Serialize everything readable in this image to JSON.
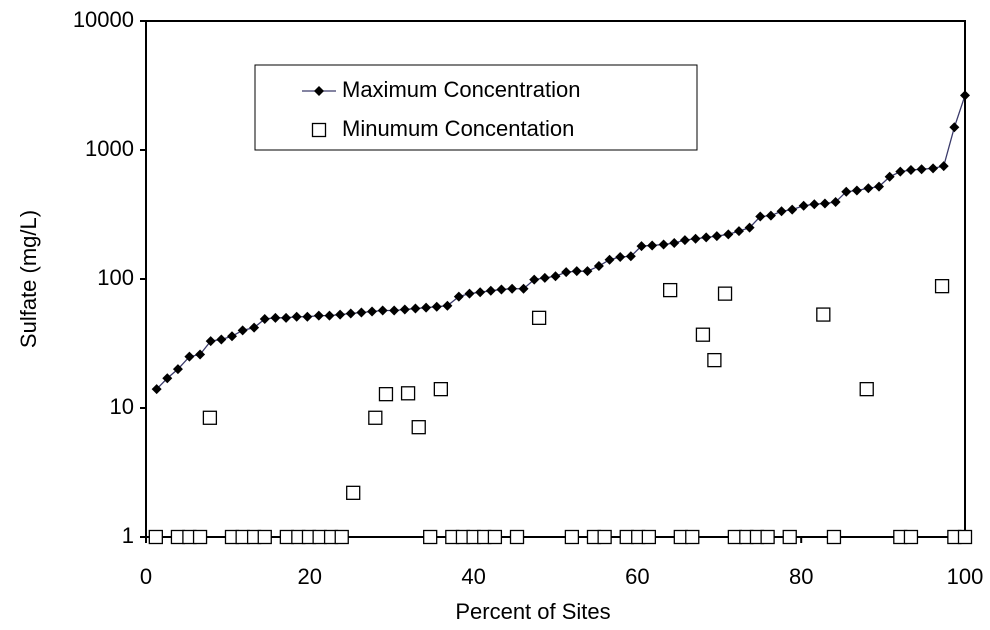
{
  "chart_data": {
    "type": "scatter",
    "x_label": "Percent of Sites",
    "y_label": "Sulfate (mg/L)",
    "xlim": [
      0,
      100
    ],
    "xticks": [
      0,
      20,
      40,
      60,
      80,
      100
    ],
    "ylim": [
      1,
      10000
    ],
    "yticks": [
      1,
      10,
      100,
      1000,
      10000
    ],
    "yscale": "log",
    "grid": false,
    "legend": "upper left",
    "series": [
      {
        "name": "Maximum Concentration",
        "color": "#000000",
        "line_color": "#3a3a6a",
        "marker": "diamond",
        "x": [
          1.3,
          2.6,
          3.9,
          5.3,
          6.6,
          7.9,
          9.2,
          10.5,
          11.8,
          13.2,
          14.5,
          15.8,
          17.1,
          18.4,
          19.7,
          21.1,
          22.4,
          23.7,
          25.0,
          26.3,
          27.6,
          28.9,
          30.3,
          31.6,
          32.9,
          34.2,
          35.5,
          36.8,
          38.2,
          39.5,
          40.8,
          42.1,
          43.4,
          44.7,
          46.1,
          47.4,
          48.7,
          50.0,
          51.3,
          52.6,
          53.9,
          55.3,
          56.6,
          57.9,
          59.2,
          60.5,
          61.8,
          63.2,
          64.5,
          65.8,
          67.1,
          68.4,
          69.7,
          71.1,
          72.4,
          73.7,
          75.0,
          76.3,
          77.6,
          78.9,
          80.3,
          81.6,
          82.9,
          84.2,
          85.5,
          86.8,
          88.2,
          89.5,
          90.8,
          92.1,
          93.4,
          94.7,
          96.1,
          97.4,
          98.7,
          100.0
        ],
        "values": [
          14,
          17,
          20,
          25,
          26,
          33,
          34,
          36,
          40,
          42,
          49,
          50,
          50,
          51,
          51,
          52,
          52,
          53,
          54,
          55,
          56,
          57,
          57,
          58,
          59,
          60,
          61,
          62,
          73,
          77,
          79,
          81,
          83,
          84,
          84,
          99,
          102,
          105,
          113,
          115,
          115,
          126,
          141,
          148,
          150,
          180,
          182,
          185,
          190,
          200,
          205,
          210,
          215,
          222,
          235,
          250,
          305,
          310,
          335,
          345,
          370,
          380,
          385,
          395,
          475,
          485,
          505,
          520,
          620,
          680,
          700,
          710,
          720,
          750,
          1500,
          2650
        ]
      },
      {
        "name": "Minumum Concentation",
        "color": "#000000",
        "marker": "square",
        "x": [
          1.2,
          3.9,
          5.3,
          6.6,
          7.8,
          10.5,
          11.8,
          13.2,
          14.5,
          17.2,
          18.6,
          19.9,
          21.2,
          22.6,
          23.9,
          25.3,
          28.0,
          29.3,
          32.0,
          33.3,
          34.7,
          36.0,
          37.4,
          38.7,
          40.0,
          41.3,
          42.6,
          45.3,
          48.0,
          52.0,
          54.7,
          56.0,
          58.7,
          60.1,
          61.4,
          64.0,
          65.3,
          66.7,
          68.0,
          69.4,
          70.7,
          71.9,
          73.3,
          74.6,
          75.9,
          78.6,
          82.7,
          84.0,
          88.0,
          92.1,
          93.4,
          97.2,
          98.7,
          100.0
        ],
        "values": [
          1,
          1,
          1,
          1,
          8.4,
          1,
          1,
          1,
          1,
          1,
          1,
          1,
          1,
          1,
          1,
          2.2,
          8.4,
          12.8,
          13,
          7.1,
          1,
          14,
          1,
          1,
          1,
          1,
          1,
          1,
          50,
          1,
          1,
          1,
          1,
          1,
          1,
          82,
          1,
          1,
          37,
          23.5,
          77,
          1,
          1,
          1,
          1,
          1,
          53,
          1,
          14,
          1,
          1,
          88,
          1,
          1
        ]
      }
    ]
  }
}
